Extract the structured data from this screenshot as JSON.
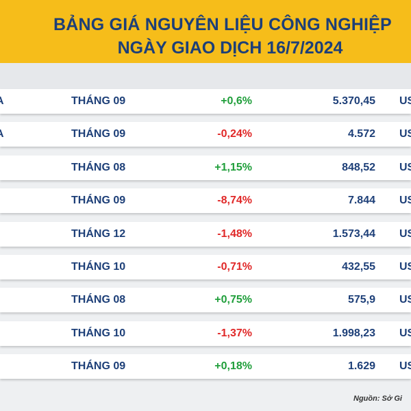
{
  "header": {
    "title": "BẢNG GIÁ NGUYÊN LIỆU CÔNG NGHIỆP",
    "subtitle": "NGÀY GIAO DỊCH 16/7/2024"
  },
  "colors": {
    "header_bg": "#f6bd1a",
    "title_text": "#1d3f78",
    "up": "#1f9e3a",
    "down": "#e02727"
  },
  "rows": [
    {
      "name": "A",
      "month": "THÁNG 09",
      "change": "+0,6%",
      "direction": "up",
      "price": "5.370,45",
      "unit": "US"
    },
    {
      "name": "A",
      "month": "THÁNG 09",
      "change": "-0,24%",
      "direction": "down",
      "price": "4.572",
      "unit": "US"
    },
    {
      "name": "",
      "month": "THÁNG 08",
      "change": "+1,15%",
      "direction": "up",
      "price": "848,52",
      "unit": "US"
    },
    {
      "name": "",
      "month": "THÁNG 09",
      "change": "-8,74%",
      "direction": "down",
      "price": "7.844",
      "unit": "US"
    },
    {
      "name": "",
      "month": "THÁNG 12",
      "change": "-1,48%",
      "direction": "down",
      "price": "1.573,44",
      "unit": "US"
    },
    {
      "name": "",
      "month": "THÁNG 10",
      "change": "-0,71%",
      "direction": "down",
      "price": "432,55",
      "unit": "US"
    },
    {
      "name": "",
      "month": "THÁNG 08",
      "change": "+0,75%",
      "direction": "up",
      "price": "575,9",
      "unit": "US"
    },
    {
      "name": "",
      "month": "THÁNG 10",
      "change": "-1,37%",
      "direction": "down",
      "price": "1.998,23",
      "unit": "US"
    },
    {
      "name": "",
      "month": "THÁNG 09",
      "change": "+0,18%",
      "direction": "up",
      "price": "1.629",
      "unit": "US"
    }
  ],
  "footer": {
    "source": "Nguồn: Sở Gi"
  }
}
